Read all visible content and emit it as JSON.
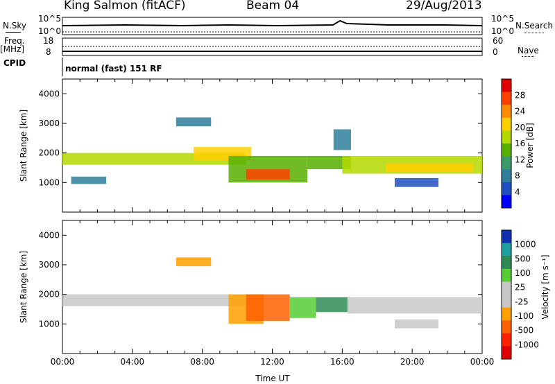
{
  "header": {
    "station": "King Salmon (fitACF)",
    "beam": "Beam 04",
    "date": "29/Aug/2013"
  },
  "top_panels": {
    "nsky_label": "N.Sky",
    "nsky_ticks": [
      "10^5",
      "10^0"
    ],
    "nsearch_label": "N.Search",
    "nsearch_ticks": [
      "10^5",
      "10^0"
    ],
    "freq_label": "Freq.",
    "freq_unit": "[MHz]",
    "freq_ticks": [
      "18",
      "8"
    ],
    "nave_label": "Nave",
    "nave_ticks": [
      "60",
      "0"
    ],
    "cpid_label": "CPID",
    "cpid_text": "normal (fast) 151 RF"
  },
  "chart_data": [
    {
      "type": "heatmap",
      "quantity": "Power",
      "ylabel": "Slant Range [km]",
      "ylim": [
        0,
        4500
      ],
      "yticks": [
        1000,
        2000,
        3000,
        4000
      ],
      "xlim_hours": [
        0,
        24
      ],
      "colorbar_label": "Power [dB]",
      "colorbar_ticks": [
        "28",
        "24",
        "20",
        "16",
        "12",
        "8",
        "4"
      ],
      "colorbar_colors": [
        "#e00000",
        "#ff4000",
        "#ff8c00",
        "#ffd000",
        "#b4d800",
        "#58b000",
        "#3a9b6a",
        "#2f7f9a",
        "#2050c0",
        "#0000ff"
      ],
      "regions": [
        {
          "x0": 0.0,
          "x1": 10.5,
          "y0": 1600,
          "y1": 2000,
          "level": 4
        },
        {
          "x0": 7.5,
          "x1": 10.8,
          "y0": 1750,
          "y1": 2200,
          "level": 3
        },
        {
          "x0": 9.5,
          "x1": 14.0,
          "y0": 1000,
          "y1": 1900,
          "level": 5
        },
        {
          "x0": 10.5,
          "x1": 13.0,
          "y0": 1100,
          "y1": 1450,
          "level": 1
        },
        {
          "x0": 14.0,
          "x1": 16.5,
          "y0": 1450,
          "y1": 1900,
          "level": 5
        },
        {
          "x0": 16.0,
          "x1": 24.0,
          "y0": 1300,
          "y1": 1900,
          "level": 4
        },
        {
          "x0": 18.5,
          "x1": 23.5,
          "y0": 1350,
          "y1": 1650,
          "level": 3
        },
        {
          "x0": 0.5,
          "x1": 2.5,
          "y0": 950,
          "y1": 1200,
          "level": 7
        },
        {
          "x0": 6.5,
          "x1": 8.5,
          "y0": 2900,
          "y1": 3200,
          "level": 7
        },
        {
          "x0": 15.5,
          "x1": 16.5,
          "y0": 2100,
          "y1": 2800,
          "level": 7
        },
        {
          "x0": 19.0,
          "x1": 21.5,
          "y0": 850,
          "y1": 1150,
          "level": 8
        }
      ]
    },
    {
      "type": "heatmap",
      "quantity": "Velocity",
      "ylabel": "Slant Range [km]",
      "xlabel": "Time UT",
      "ylim": [
        0,
        4500
      ],
      "yticks": [
        1000,
        2000,
        3000,
        4000
      ],
      "xlim_hours": [
        0,
        24
      ],
      "xticks": [
        "00:00",
        "04:00",
        "08:00",
        "12:00",
        "16:00",
        "20:00",
        "00:00"
      ],
      "colorbar_label": "Velocity [m s⁻¹]",
      "colorbar_ticks": [
        "1000",
        "500",
        "100",
        "25",
        "-25",
        "-100",
        "-500",
        "-1000"
      ],
      "colorbar_colors": [
        "#1030b0",
        "#20a0a0",
        "#2e8b57",
        "#55cc33",
        "#c8c8c8",
        "#c8c8c8",
        "#ffa000",
        "#ff6000",
        "#ff2000",
        "#e00000"
      ],
      "regions": [
        {
          "x0": 0.0,
          "x1": 10.5,
          "y0": 1600,
          "y1": 2000,
          "level": 4
        },
        {
          "x0": 9.5,
          "x1": 11.5,
          "y0": 1000,
          "y1": 2000,
          "level": 6
        },
        {
          "x0": 10.5,
          "x1": 13.0,
          "y0": 1100,
          "y1": 2000,
          "level": 7
        },
        {
          "x0": 13.0,
          "x1": 14.5,
          "y0": 1200,
          "y1": 1900,
          "level": 3
        },
        {
          "x0": 14.5,
          "x1": 16.3,
          "y0": 1400,
          "y1": 1900,
          "level": 2
        },
        {
          "x0": 16.3,
          "x1": 24.0,
          "y0": 1350,
          "y1": 1900,
          "level": 4
        },
        {
          "x0": 6.5,
          "x1": 8.5,
          "y0": 2950,
          "y1": 3250,
          "level": 6
        },
        {
          "x0": 19.0,
          "x1": 21.5,
          "y0": 850,
          "y1": 1150,
          "level": 4
        }
      ]
    }
  ]
}
